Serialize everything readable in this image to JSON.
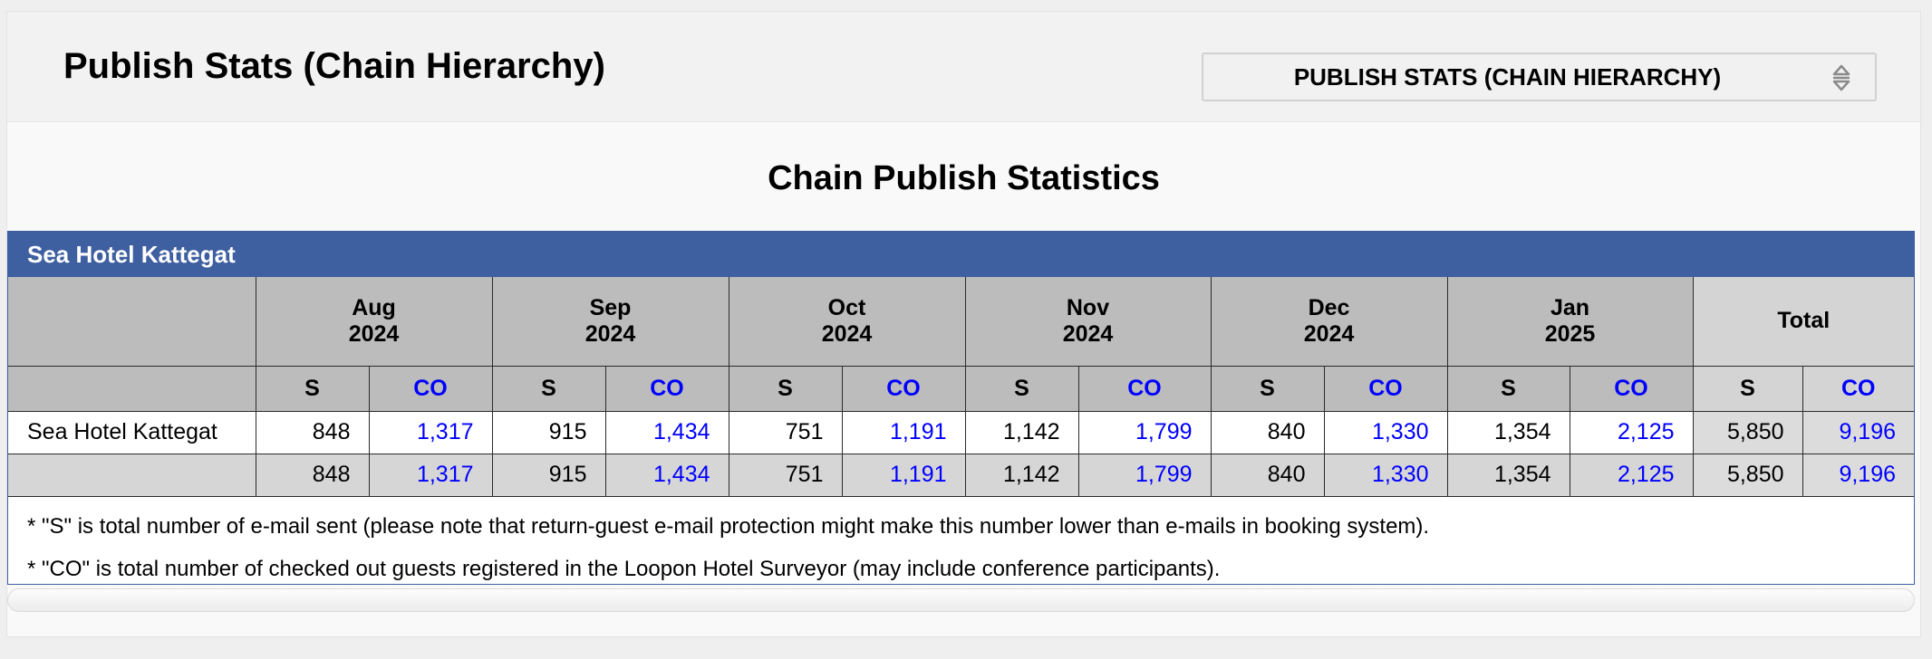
{
  "header": {
    "title": "Publish Stats (Chain Hierarchy)",
    "selector_value": "PUBLISH STATS (CHAIN HIERARCHY)"
  },
  "section": {
    "title": "Chain Publish Statistics",
    "hotel_name": "Sea Hotel Kattegat"
  },
  "table": {
    "months": [
      {
        "month": "Aug",
        "year": "2024"
      },
      {
        "month": "Sep",
        "year": "2024"
      },
      {
        "month": "Oct",
        "year": "2024"
      },
      {
        "month": "Nov",
        "year": "2024"
      },
      {
        "month": "Dec",
        "year": "2024"
      },
      {
        "month": "Jan",
        "year": "2025"
      }
    ],
    "total_label": "Total",
    "s_label": "S",
    "co_label": "CO",
    "rows": [
      {
        "name": "Sea Hotel Kattegat",
        "values": [
          "848",
          "1,317",
          "915",
          "1,434",
          "751",
          "1,191",
          "1,142",
          "1,799",
          "840",
          "1,330",
          "1,354",
          "2,125",
          "5,850",
          "9,196"
        ]
      },
      {
        "name": "",
        "values": [
          "848",
          "1,317",
          "915",
          "1,434",
          "751",
          "1,191",
          "1,142",
          "1,799",
          "840",
          "1,330",
          "1,354",
          "2,125",
          "5,850",
          "9,196"
        ]
      }
    ]
  },
  "notes": [
    "* \"S\" is total number of e-mail sent (please note that return-guest e-mail protection might make this number lower than e-mails in booking system).",
    "* \"CO\" is total number of checked out guests registered in the Loopon Hotel Surveyor (may include conference participants)."
  ]
}
